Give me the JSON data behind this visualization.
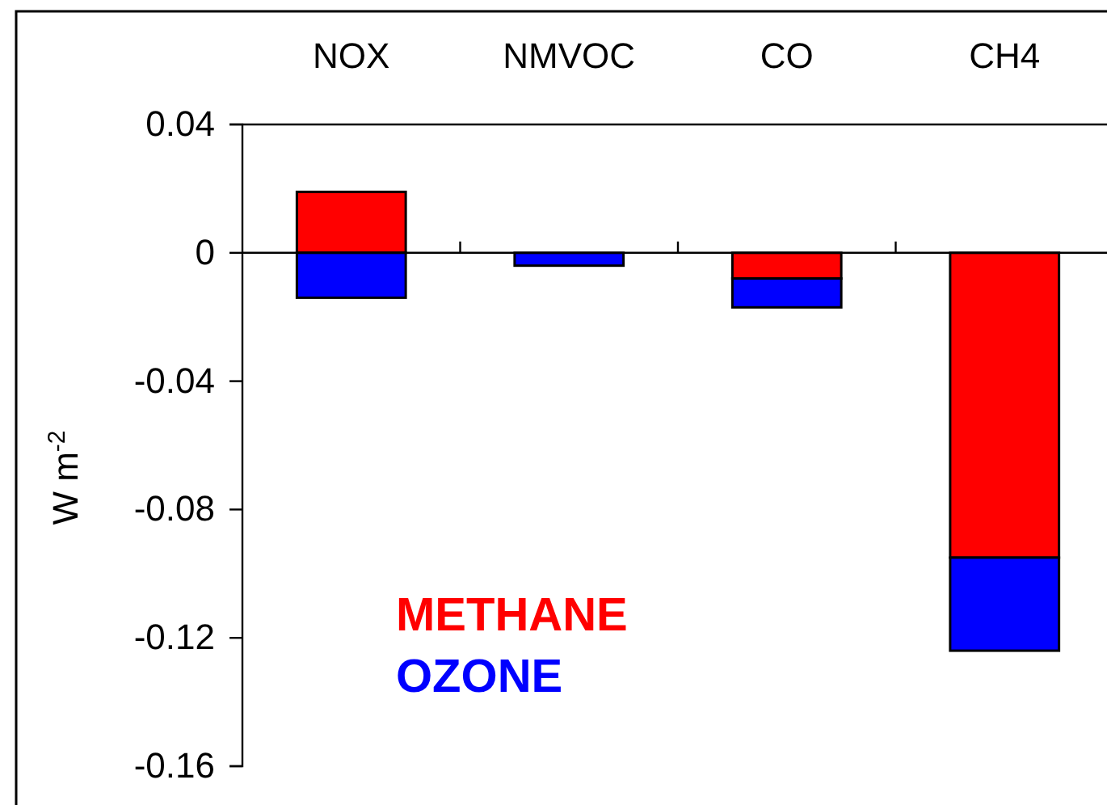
{
  "chart_data": {
    "type": "bar",
    "stacked": true,
    "ylabel": "W m$^{-2}$",
    "categories": [
      "NOX",
      "NMVOC",
      "CO",
      "CH4"
    ],
    "series": [
      {
        "name": "METHANE",
        "color": "#ff0000",
        "values": [
          0.019,
          0,
          -0.008,
          -0.095
        ]
      },
      {
        "name": "OZONE",
        "color": "#0000ff",
        "values": [
          -0.014,
          -0.004,
          -0.009,
          -0.029
        ]
      }
    ],
    "ylim": [
      -0.16,
      0.04
    ],
    "yticks": [
      0.04,
      0,
      -0.04,
      -0.08,
      -0.12,
      -0.16
    ],
    "legend": "bottom left"
  }
}
